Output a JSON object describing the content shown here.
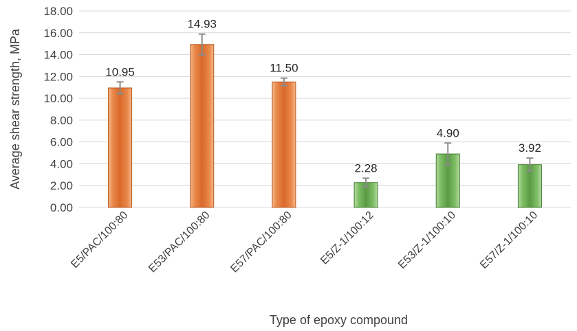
{
  "chart_data": {
    "type": "bar",
    "categories": [
      "E5/PAC/100:80",
      "E53/PAC/100:80",
      "E57/PAC/100:80",
      "E5/Z-1/100:12",
      "E53/Z-1/100:10",
      "E57/Z-1/100:10"
    ],
    "values": [
      10.95,
      14.93,
      11.5,
      2.28,
      4.9,
      3.92
    ],
    "value_labels": [
      "10.95",
      "14.93",
      "11.50",
      "2.28",
      "4.90",
      "3.92"
    ],
    "error": [
      0.55,
      0.95,
      0.35,
      0.4,
      1.0,
      0.6
    ],
    "bar_colors": [
      "#e07b39",
      "#e07b39",
      "#e07b39",
      "#6aa84f",
      "#6aa84f",
      "#6aa84f"
    ],
    "xlabel": "Type of epoxy compound",
    "ylabel": "Average shear strength, MPa",
    "ylim": [
      0,
      18
    ],
    "yticks": [
      "0.00",
      "2.00",
      "4.00",
      "6.00",
      "8.00",
      "10.00",
      "12.00",
      "14.00",
      "16.00",
      "18.00"
    ],
    "grid": true,
    "legend": "none"
  }
}
